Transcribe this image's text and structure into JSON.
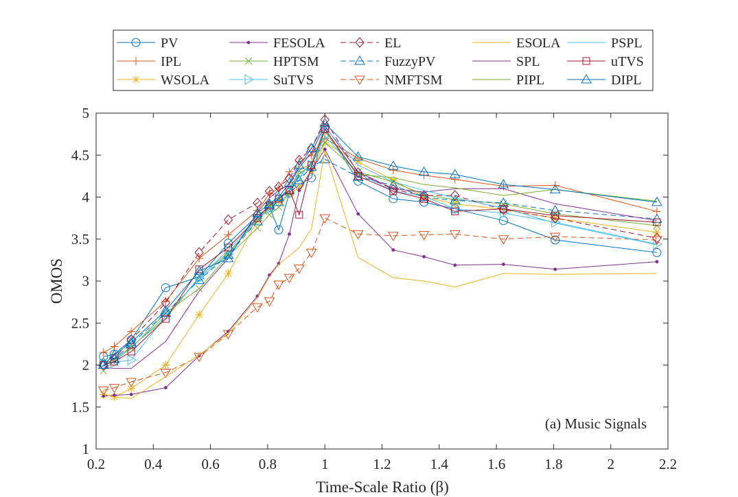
{
  "chart_data": {
    "type": "line",
    "annotation": "(a) Music Signals",
    "xlabel": "Time-Scale Ratio (β)",
    "ylabel": "OMOS",
    "xlim": [
      0.2,
      2.2
    ],
    "ylim": [
      1,
      5
    ],
    "xticks": [
      0.2,
      0.4,
      0.6,
      0.8,
      1,
      1.2,
      1.4,
      1.6,
      1.8,
      2,
      2.2
    ],
    "yticks": [
      1,
      1.5,
      2,
      2.5,
      3,
      3.5,
      4,
      4.5,
      5
    ],
    "xtick_labels": [
      "0.2",
      "0.4",
      "0.6",
      "0.8",
      "1",
      "1.2",
      "1.4",
      "1.6",
      "1.8",
      "2",
      "2.2"
    ],
    "ytick_labels": [
      "1",
      "1.5",
      "2",
      "2.5",
      "3",
      "3.5",
      "4",
      "4.5",
      "5"
    ],
    "grid": false,
    "legend_position": "top",
    "x": [
      0.2257,
      0.2637,
      0.3228,
      0.4432,
      0.5604,
      0.6622,
      0.7641,
      0.8062,
      0.8387,
      0.8759,
      0.9102,
      0.9531,
      1.0,
      1.1163,
      1.2393,
      1.3466,
      1.4551,
      1.6246,
      1.8056,
      2.1612
    ],
    "series": [
      {
        "name": "PV",
        "color": "#0072BD",
        "marker": "circle",
        "dash": false,
        "values": [
          2.1,
          2.13,
          2.3,
          2.92,
          3.05,
          3.45,
          3.78,
          3.88,
          3.61,
          4.05,
          4.15,
          4.23,
          4.82,
          4.19,
          3.98,
          3.94,
          3.86,
          3.72,
          3.49,
          3.34
        ]
      },
      {
        "name": "IPL",
        "color": "#D95319",
        "marker": "plus",
        "dash": false,
        "values": [
          2.15,
          2.22,
          2.4,
          2.76,
          3.27,
          3.55,
          3.84,
          4.04,
          4.1,
          4.3,
          4.42,
          4.5,
          4.7,
          4.46,
          4.32,
          4.26,
          4.21,
          4.13,
          4.14,
          3.83
        ]
      },
      {
        "name": "WSOLA",
        "color": "#EDB120",
        "marker": "asterisk",
        "dash": false,
        "values": [
          1.65,
          1.62,
          1.72,
          2.0,
          2.6,
          3.09,
          3.72,
          3.9,
          3.95,
          4.03,
          4.12,
          4.3,
          4.65,
          4.42,
          4.2,
          4.0,
          3.92,
          3.85,
          3.75,
          3.58
        ]
      },
      {
        "name": "FESOLA",
        "color": "#7E2F8E",
        "marker": "dot",
        "dash": false,
        "values": [
          1.63,
          1.64,
          1.65,
          1.73,
          2.11,
          2.4,
          2.82,
          3.07,
          3.21,
          3.56,
          4.08,
          4.32,
          4.57,
          3.8,
          3.37,
          3.29,
          3.19,
          3.2,
          3.14,
          3.23
        ]
      },
      {
        "name": "HPTSM",
        "color": "#77AC30",
        "marker": "x",
        "dash": false,
        "values": [
          1.93,
          2.05,
          2.2,
          2.62,
          2.91,
          3.3,
          3.63,
          3.79,
          3.88,
          4.05,
          4.32,
          4.4,
          4.65,
          4.3,
          4.18,
          4.03,
          3.97,
          3.92,
          3.8,
          3.66
        ]
      },
      {
        "name": "SuTVS",
        "color": "#4DBEEE",
        "marker": "triangle-right",
        "dash": false,
        "values": [
          2.02,
          2.03,
          2.06,
          2.58,
          3.03,
          3.32,
          3.75,
          3.85,
          3.98,
          4.06,
          4.27,
          4.38,
          4.73,
          4.28,
          4.07,
          4.01,
          3.86,
          3.81,
          3.7,
          3.44
        ]
      },
      {
        "name": "EL",
        "color": "#A2142F",
        "marker": "diamond",
        "dash": true,
        "values": [
          2.0,
          2.08,
          2.3,
          2.74,
          3.34,
          3.73,
          3.93,
          4.07,
          4.12,
          4.22,
          4.44,
          4.58,
          4.92,
          4.29,
          4.09,
          4.02,
          4.02,
          3.85,
          3.75,
          3.51
        ]
      },
      {
        "name": "FuzzyPV",
        "color": "#0072BD",
        "marker": "triangle-up",
        "dash": true,
        "values": [
          2.03,
          2.07,
          2.25,
          2.62,
          3.01,
          3.31,
          3.71,
          3.9,
          3.94,
          4.08,
          4.2,
          4.36,
          4.45,
          4.24,
          4.14,
          4.0,
          3.96,
          3.93,
          3.84,
          3.74
        ]
      },
      {
        "name": "NMFTSM",
        "color": "#D95319",
        "marker": "triangle-down",
        "dash": true,
        "values": [
          1.7,
          1.73,
          1.8,
          1.91,
          2.1,
          2.37,
          2.69,
          2.76,
          2.96,
          3.04,
          3.15,
          3.34,
          3.75,
          3.56,
          3.54,
          3.55,
          3.56,
          3.5,
          3.53,
          3.49
        ]
      },
      {
        "name": "ESOLA",
        "color": "#EDB120",
        "marker": "none",
        "dash": false,
        "values": [
          1.65,
          1.62,
          1.6,
          1.86,
          2.12,
          2.38,
          2.8,
          3.05,
          3.2,
          3.3,
          3.4,
          3.62,
          4.55,
          3.28,
          3.04,
          3.0,
          2.93,
          3.09,
          3.08,
          3.09
        ]
      },
      {
        "name": "SPL",
        "color": "#7E2F8E",
        "marker": "none",
        "dash": false,
        "values": [
          1.97,
          1.96,
          1.96,
          2.28,
          2.88,
          3.27,
          3.82,
          3.99,
          4.08,
          4.15,
          4.35,
          4.53,
          4.85,
          4.3,
          4.1,
          4.06,
          4.1,
          4.1,
          3.92,
          3.72
        ]
      },
      {
        "name": "PIPL",
        "color": "#77AC30",
        "marker": "none",
        "dash": false,
        "values": [
          2.02,
          2.06,
          2.22,
          2.55,
          3.05,
          3.34,
          3.72,
          3.88,
          3.97,
          4.12,
          4.28,
          4.38,
          4.78,
          4.27,
          4.23,
          4.15,
          4.11,
          4.02,
          4.09,
          3.95
        ]
      },
      {
        "name": "PSPL",
        "color": "#4DBEEE",
        "marker": "none",
        "dash": false,
        "values": [
          2.0,
          2.04,
          2.21,
          2.58,
          3.04,
          3.37,
          3.74,
          3.85,
          3.99,
          4.11,
          4.23,
          4.42,
          4.83,
          4.38,
          4.18,
          4.08,
          3.99,
          3.87,
          3.69,
          3.43
        ]
      },
      {
        "name": "uTVS",
        "color": "#A2142F",
        "marker": "square",
        "dash": false,
        "values": [
          2.0,
          2.04,
          2.16,
          2.55,
          3.14,
          3.4,
          3.75,
          3.9,
          3.98,
          4.08,
          3.79,
          4.38,
          4.81,
          4.25,
          4.07,
          3.98,
          3.83,
          3.86,
          3.78,
          3.7
        ]
      },
      {
        "name": "DIPL",
        "color": "#0072BD",
        "marker": "triangle-up",
        "dash": false,
        "values": [
          2.0,
          2.12,
          2.27,
          2.65,
          3.12,
          3.27,
          3.81,
          3.92,
          4.0,
          4.17,
          4.38,
          4.58,
          4.88,
          4.48,
          4.37,
          4.3,
          4.27,
          4.15,
          4.09,
          3.94
        ]
      }
    ]
  }
}
